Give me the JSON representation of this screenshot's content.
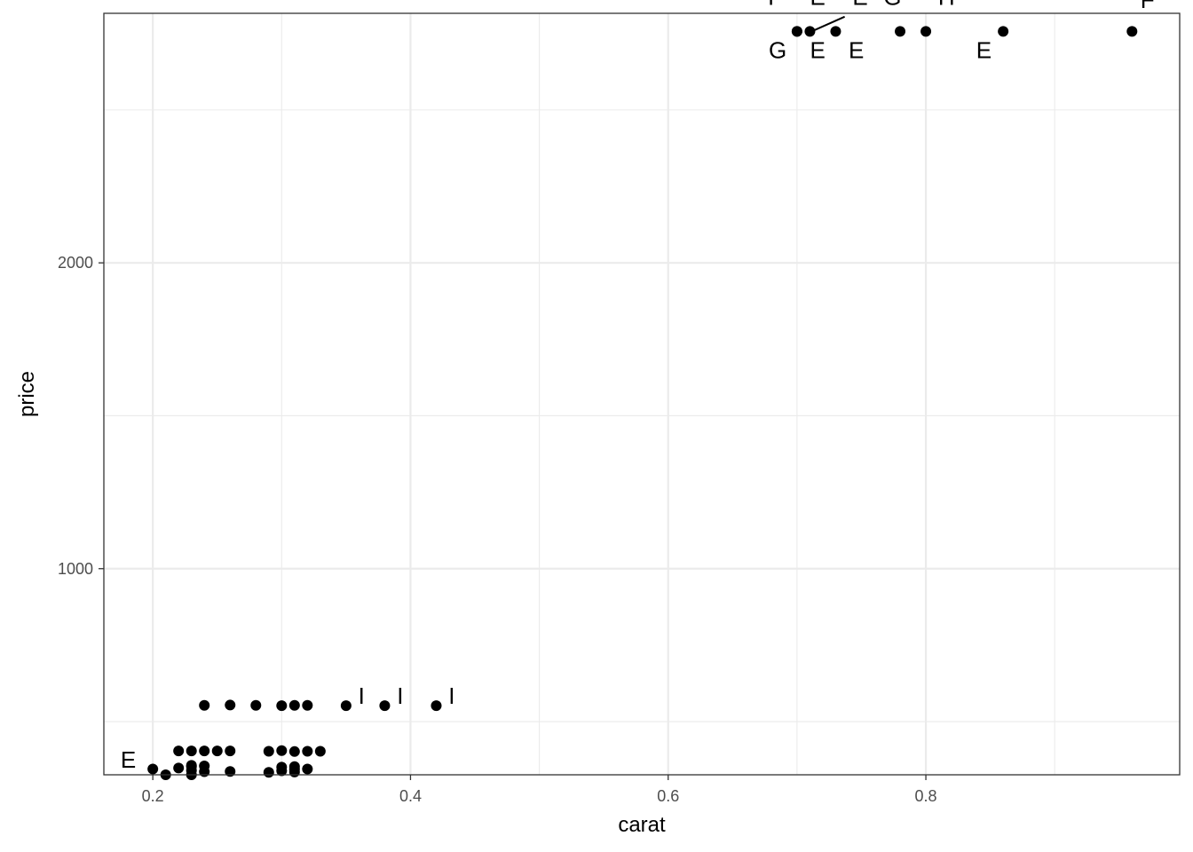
{
  "chart_data": {
    "type": "scatter",
    "xlabel": "carat",
    "ylabel": "price",
    "xlim": [
      0.162,
      0.997
    ],
    "ylim": [
      326,
      2816
    ],
    "x_ticks": [
      0.2,
      0.4,
      0.6,
      0.8
    ],
    "x_tick_labels": [
      "0.2",
      "0.4",
      "0.6",
      "0.8"
    ],
    "y_ticks": [
      1000,
      2000
    ],
    "y_tick_labels": [
      "1000",
      "2000"
    ],
    "grid": true,
    "legend": "none",
    "points": [
      {
        "x": 0.2,
        "y": 345
      },
      {
        "x": 0.21,
        "y": 326
      },
      {
        "x": 0.22,
        "y": 348
      },
      {
        "x": 0.22,
        "y": 404
      },
      {
        "x": 0.23,
        "y": 326
      },
      {
        "x": 0.23,
        "y": 340
      },
      {
        "x": 0.23,
        "y": 353
      },
      {
        "x": 0.23,
        "y": 357
      },
      {
        "x": 0.23,
        "y": 404
      },
      {
        "x": 0.24,
        "y": 336
      },
      {
        "x": 0.24,
        "y": 355
      },
      {
        "x": 0.24,
        "y": 404
      },
      {
        "x": 0.24,
        "y": 553
      },
      {
        "x": 0.25,
        "y": 404
      },
      {
        "x": 0.26,
        "y": 337
      },
      {
        "x": 0.26,
        "y": 404
      },
      {
        "x": 0.26,
        "y": 554
      },
      {
        "x": 0.28,
        "y": 553
      },
      {
        "x": 0.29,
        "y": 334
      },
      {
        "x": 0.29,
        "y": 403
      },
      {
        "x": 0.3,
        "y": 339
      },
      {
        "x": 0.3,
        "y": 351
      },
      {
        "x": 0.3,
        "y": 405
      },
      {
        "x": 0.3,
        "y": 552
      },
      {
        "x": 0.31,
        "y": 335
      },
      {
        "x": 0.31,
        "y": 344
      },
      {
        "x": 0.31,
        "y": 353
      },
      {
        "x": 0.31,
        "y": 402
      },
      {
        "x": 0.31,
        "y": 553
      },
      {
        "x": 0.32,
        "y": 345
      },
      {
        "x": 0.32,
        "y": 403
      },
      {
        "x": 0.32,
        "y": 553
      },
      {
        "x": 0.33,
        "y": 403
      },
      {
        "x": 0.35,
        "y": 552
      },
      {
        "x": 0.38,
        "y": 552
      },
      {
        "x": 0.42,
        "y": 552
      },
      {
        "x": 0.7,
        "y": 2757
      },
      {
        "x": 0.7,
        "y": 2757
      },
      {
        "x": 0.71,
        "y": 2757
      },
      {
        "x": 0.73,
        "y": 2757
      },
      {
        "x": 0.78,
        "y": 2757
      },
      {
        "x": 0.8,
        "y": 2757
      },
      {
        "x": 0.86,
        "y": 2757
      },
      {
        "x": 0.96,
        "y": 2757
      }
    ],
    "annotations": [
      {
        "text": "E",
        "x": 0.181,
        "y": 376
      },
      {
        "text": "I",
        "x": 0.362,
        "y": 585
      },
      {
        "text": "I",
        "x": 0.392,
        "y": 585
      },
      {
        "text": "I",
        "x": 0.432,
        "y": 585
      },
      {
        "text": "F",
        "x": 0.683,
        "y": 2870
      },
      {
        "text": "E",
        "x": 0.716,
        "y": 2870
      },
      {
        "text": "E",
        "x": 0.749,
        "y": 2870
      },
      {
        "text": "G",
        "x": 0.774,
        "y": 2870
      },
      {
        "text": "H",
        "x": 0.816,
        "y": 2870
      },
      {
        "text": "F",
        "x": 0.972,
        "y": 2860
      },
      {
        "text": "G",
        "x": 0.685,
        "y": 2695
      },
      {
        "text": "E",
        "x": 0.716,
        "y": 2695
      },
      {
        "text": "E",
        "x": 0.746,
        "y": 2695
      },
      {
        "text": "E",
        "x": 0.845,
        "y": 2695
      }
    ],
    "segments": [
      {
        "x1": 0.713,
        "y1": 2760,
        "x2": 0.737,
        "y2": 2805
      }
    ]
  }
}
